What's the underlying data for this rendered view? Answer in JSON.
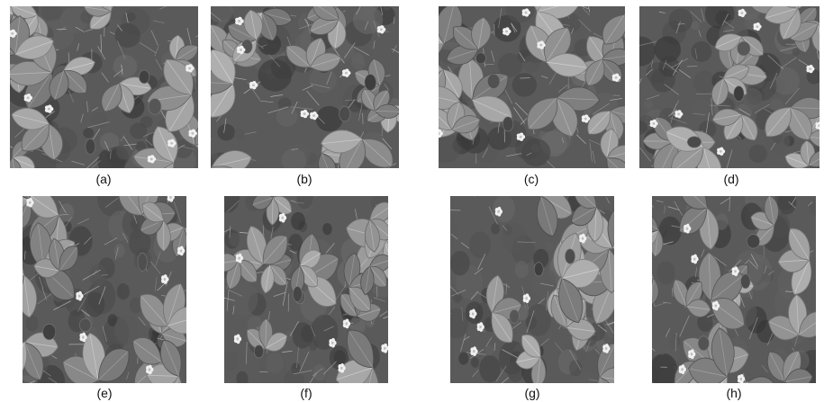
{
  "figure": {
    "panels": [
      {
        "label": "(a)",
        "description": "grayscale photo of strawberry plant leaves with small white flowers"
      },
      {
        "label": "(b)",
        "description": "grayscale photo of strawberry plant leaves with small white flowers"
      },
      {
        "label": "(c)",
        "description": "grayscale photo of strawberry plant leaves with small white flowers"
      },
      {
        "label": "(d)",
        "description": "grayscale photo of strawberry plant leaves with small white flowers"
      },
      {
        "label": "(e)",
        "description": "grayscale photo of strawberry plant leaves, berries and white flowers"
      },
      {
        "label": "(f)",
        "description": "grayscale photo of strawberry plant leaves, berries and white flowers"
      },
      {
        "label": "(g)",
        "description": "grayscale photo of strawberry plant leaves, berries and white flowers"
      },
      {
        "label": "(h)",
        "description": "grayscale photo of strawberry plant leaves, berries and white flowers"
      }
    ]
  }
}
